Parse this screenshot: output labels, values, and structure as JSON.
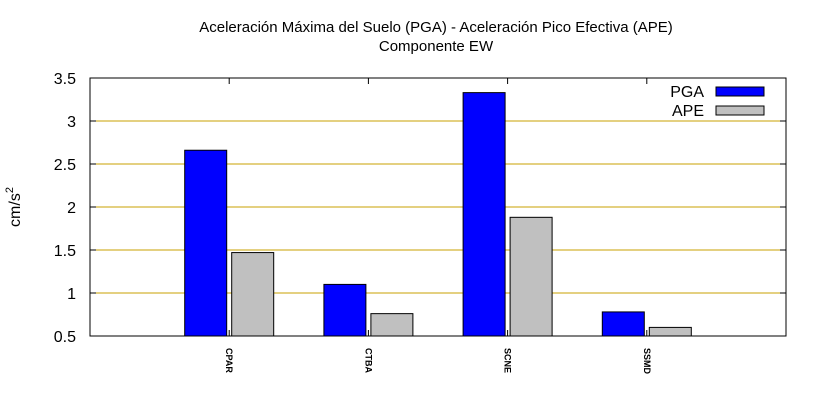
{
  "chart_data": {
    "type": "bar",
    "title": "Aceleración Máxima del Suelo (PGA) -  Aceleración Pico Efectiva (APE)",
    "subtitle": "Componente EW",
    "xlabel": "",
    "ylabel": "cm/s",
    "ylabel_superscript": "2",
    "categories": [
      "CPAR",
      "CTBA",
      "SCNE",
      "SSMD"
    ],
    "series": [
      {
        "name": "PGA",
        "values": [
          2.66,
          1.1,
          3.33,
          0.78
        ],
        "color": "#0000ff"
      },
      {
        "name": "APE",
        "values": [
          1.47,
          0.76,
          1.88,
          0.6
        ],
        "color": "#c0c0c0"
      }
    ],
    "ylim": [
      0.5,
      3.5
    ],
    "yticks": [
      "0.5",
      "1",
      "1.5",
      "2",
      "2.5",
      "3",
      "3.5"
    ],
    "grid": true,
    "grid_color": "#c8a000",
    "legend_position": "top-right"
  }
}
